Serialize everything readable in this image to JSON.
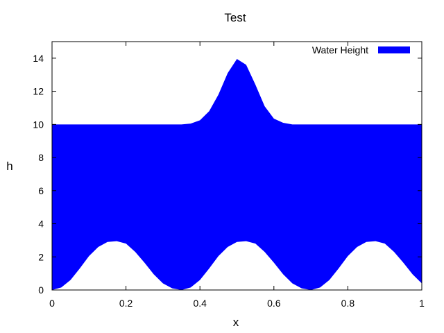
{
  "chart_data": {
    "type": "area",
    "title": "Test",
    "xlabel": "x",
    "ylabel": "h",
    "xlim": [
      0,
      1
    ],
    "ylim": [
      0,
      15
    ],
    "x_ticks": [
      "0",
      "0.2",
      "0.4",
      "0.6",
      "0.8",
      "1"
    ],
    "y_ticks": [
      "0",
      "2",
      "4",
      "6",
      "8",
      "10",
      "12",
      "14"
    ],
    "grid": false,
    "legend": {
      "position": "top-right"
    },
    "series": [
      {
        "name": "Water Height",
        "color": "#0000ff",
        "x": [
          0,
          0.025,
          0.05,
          0.075,
          0.1,
          0.125,
          0.15,
          0.175,
          0.2,
          0.225,
          0.25,
          0.275,
          0.3,
          0.325,
          0.35,
          0.375,
          0.4,
          0.425,
          0.45,
          0.475,
          0.5,
          0.525,
          0.55,
          0.575,
          0.6,
          0.625,
          0.65,
          0.675,
          0.7,
          0.725,
          0.75,
          0.775,
          0.8,
          0.825,
          0.85,
          0.875,
          0.9,
          0.925,
          0.95,
          0.975,
          1
        ],
        "bottom": [
          0.0,
          0.15,
          0.6,
          1.3,
          2.05,
          2.6,
          2.9,
          2.95,
          2.8,
          2.3,
          1.65,
          0.95,
          0.4,
          0.1,
          0.0,
          0.15,
          0.6,
          1.3,
          2.05,
          2.6,
          2.9,
          2.95,
          2.8,
          2.3,
          1.65,
          0.95,
          0.4,
          0.1,
          0.0,
          0.15,
          0.6,
          1.3,
          2.05,
          2.6,
          2.9,
          2.95,
          2.8,
          2.3,
          1.65,
          0.95,
          0.4
        ],
        "top": [
          10,
          10,
          10,
          10,
          10,
          10,
          10,
          10,
          10,
          10,
          10,
          10,
          10,
          10,
          10,
          10.05,
          10.25,
          10.8,
          11.8,
          13.1,
          13.95,
          13.6,
          12.4,
          11.1,
          10.35,
          10.1,
          10,
          10,
          10,
          10,
          10,
          10,
          10,
          10,
          10,
          10,
          10,
          10,
          10,
          10,
          10
        ]
      }
    ]
  }
}
